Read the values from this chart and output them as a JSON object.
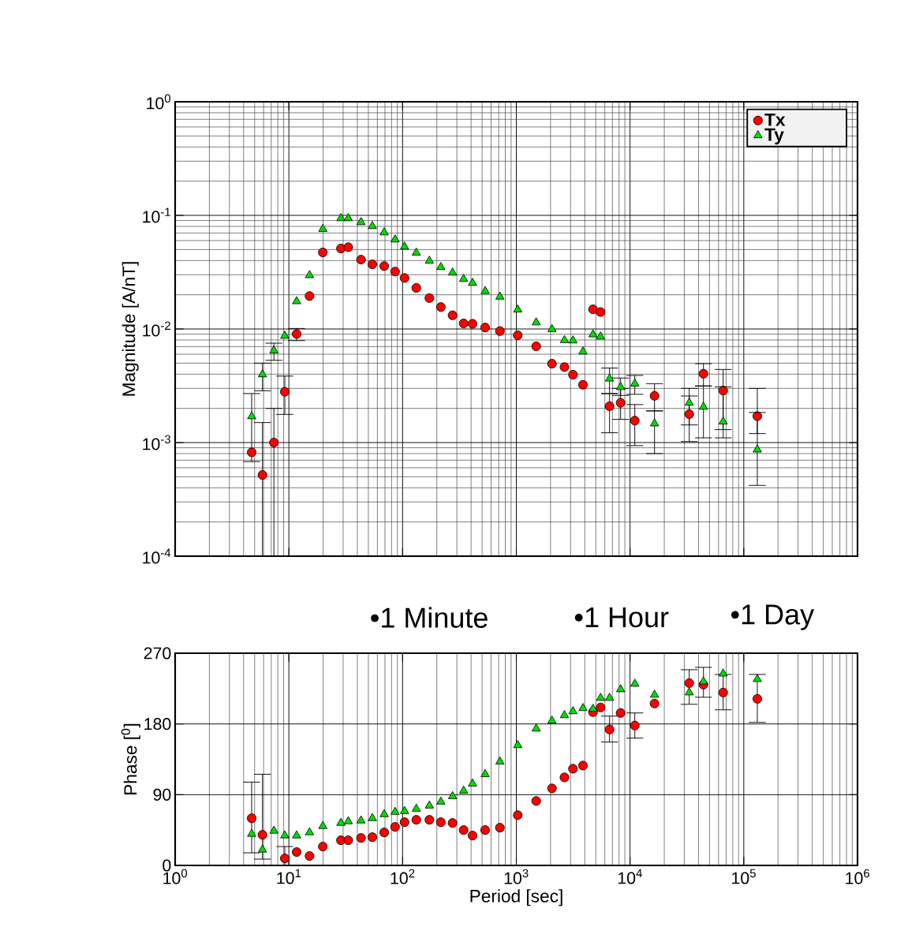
{
  "chart_data": [
    {
      "type": "scatter",
      "ylabel": "Magnitude [A/nT]",
      "log": "xy",
      "grid": true,
      "legend": "top right",
      "tick_labels": "y",
      "x": [
        4.71,
        5.86,
        7.39,
        9.21,
        11.7,
        15.2,
        19.9,
        28.7,
        33.3,
        43.1,
        54.2,
        68.9,
        85.9,
        104,
        132,
        172,
        217,
        275,
        344,
        412,
        532,
        717,
        1029,
        1495,
        2058,
        2649,
        3148,
        3855,
        4722,
        5505,
        6601,
        8258,
        11010,
        16410,
        33150,
        44190,
        65860,
        131500
      ],
      "xlim": [
        1,
        1000000
      ],
      "xticks": [
        {
          "value": 1,
          "label": null
        },
        {
          "value": 10,
          "label": null
        },
        {
          "value": 100,
          "label": null
        },
        {
          "value": 1000,
          "label": null
        },
        {
          "value": 10000,
          "label": null
        },
        {
          "value": 100000,
          "label": null
        },
        {
          "value": 1000000,
          "label": null
        }
      ],
      "ylim": [
        0.0001,
        1
      ],
      "yticks": [
        {
          "value": 0.0001,
          "label": "10$^{-4}$"
        },
        {
          "value": 0.001,
          "label": "10$^{-3}$"
        },
        {
          "value": 0.01,
          "label": "10$^{-2}$"
        },
        {
          "value": 0.1,
          "label": "10$^{-1}$"
        },
        {
          "value": 1,
          "label": "10$^{0}$"
        }
      ],
      "series": [
        {
          "name": "Tx",
          "color": "#ff0000",
          "marker": "circle",
          "values": [
            0.000821,
            0.000519,
            0.001,
            0.0028,
            0.00904,
            0.0195,
            0.0472,
            0.0511,
            0.0525,
            0.0408,
            0.0371,
            0.0358,
            0.032,
            0.0281,
            0.023,
            0.0187,
            0.0156,
            0.0132,
            0.0112,
            0.0111,
            0.0103,
            0.00958,
            0.0088,
            0.00704,
            0.00495,
            0.00462,
            0.00396,
            0.00323,
            0.0149,
            0.0141,
            0.00209,
            0.00224,
            0.00156,
            0.00258,
            0.00178,
            0.00404,
            0.00287,
            0.00171
          ],
          "errors": [
            [
              0.00068,
              0.0027
            ],
            [
              0.0001,
              0.0015
            ],
            [
              0.0001,
              0.002
            ],
            [
              0.00177,
              0.00385
            ],
            [
              0.0079,
              0.0101
            ],
            null,
            null,
            null,
            null,
            null,
            null,
            null,
            null,
            null,
            null,
            null,
            null,
            null,
            null,
            null,
            null,
            null,
            null,
            null,
            null,
            null,
            null,
            null,
            null,
            null,
            [
              0.00122,
              0.0027
            ],
            [
              0.0016,
              0.003
            ],
            [
              0.00094,
              0.00216
            ],
            [
              0.0019,
              0.0033
            ],
            [
              0.00102,
              0.00257
            ],
            [
              0.00315,
              0.00495
            ],
            [
              0.0013,
              0.0044
            ],
            [
              0.0012,
              0.003
            ]
          ]
        },
        {
          "name": "Ty",
          "color": "#00dd00",
          "marker": "triangle",
          "values": [
            0.0017,
            0.00398,
            0.00646,
            0.0087,
            0.0175,
            0.0297,
            0.0758,
            0.0943,
            0.0943,
            0.087,
            0.0803,
            0.0707,
            0.0612,
            0.053,
            0.0469,
            0.0398,
            0.035,
            0.0313,
            0.0275,
            0.0254,
            0.0215,
            0.0192,
            0.0148,
            0.0114,
            0.00995,
            0.00796,
            0.00791,
            0.00632,
            0.00894,
            0.00856,
            0.00365,
            0.00308,
            0.0033,
            0.00147,
            0.00224,
            0.00206,
            0.00153,
            0.000866
          ],
          "errors": [
            null,
            [
              0.00286,
              0.005
            ],
            [
              0.0053,
              0.0075
            ],
            null,
            null,
            null,
            null,
            null,
            null,
            null,
            null,
            null,
            null,
            null,
            null,
            null,
            null,
            null,
            null,
            null,
            null,
            null,
            null,
            null,
            null,
            null,
            null,
            null,
            null,
            null,
            [
              0.0027,
              0.00453
            ],
            [
              0.0026,
              0.0037
            ],
            [
              0.00266,
              0.0039
            ],
            [
              0.0008,
              0.0019
            ],
            [
              0.00143,
              0.003
            ],
            [
              0.0011,
              0.00315
            ],
            [
              0.0011,
              0.0031
            ],
            [
              0.00042,
              0.00184
            ]
          ]
        }
      ]
    },
    {
      "type": "scatter",
      "xlabel": "Period [sec]",
      "ylabel": "Phase [$^{0}$]",
      "log": "x",
      "grid": true,
      "x": [
        4.71,
        5.86,
        7.39,
        9.21,
        11.7,
        15.2,
        19.9,
        28.7,
        33.3,
        43.1,
        54.2,
        68.9,
        85.9,
        104,
        132,
        172,
        217,
        275,
        344,
        412,
        532,
        717,
        1029,
        1495,
        2058,
        2649,
        3148,
        3855,
        4722,
        5505,
        6601,
        8258,
        11010,
        16410,
        33150,
        44190,
        65860,
        131500
      ],
      "xlim": [
        1,
        1000000
      ],
      "xticks": [
        {
          "value": 1,
          "label": "10$^{0}$"
        },
        {
          "value": 10,
          "label": "10$^{1}$"
        },
        {
          "value": 100,
          "label": "10$^{2}$"
        },
        {
          "value": 1000,
          "label": "10$^{3}$"
        },
        {
          "value": 10000,
          "label": "10$^{4}$"
        },
        {
          "value": 100000,
          "label": "10$^{5}$"
        },
        {
          "value": 1000000,
          "label": "10$^{6}$"
        }
      ],
      "ylim": [
        0,
        270
      ],
      "yticks": [
        0,
        90,
        180,
        270
      ],
      "annotations": [
        "•1 Minute",
        "•1 Hour",
        "•1 Day"
      ],
      "series": [
        {
          "color": "#ff0000",
          "marker": "circle",
          "values": [
            60,
            39,
            null,
            9,
            17,
            12,
            24,
            32,
            32,
            35,
            36,
            42,
            49,
            55,
            58,
            58,
            55,
            54,
            45,
            38,
            45,
            48,
            64,
            82,
            98,
            112,
            123,
            127,
            195,
            201,
            173,
            194,
            178,
            206,
            232,
            230,
            220,
            212
          ],
          "errors": [
            [
              16,
              106
            ],
            [
              8,
              116
            ],
            null,
            [
              0,
              24
            ],
            null,
            null,
            null,
            null,
            null,
            null,
            null,
            null,
            null,
            null,
            null,
            null,
            null,
            null,
            null,
            null,
            null,
            null,
            null,
            null,
            null,
            null,
            null,
            null,
            null,
            null,
            [
              157,
              190
            ],
            null,
            [
              162,
              194
            ],
            null,
            [
              205,
              249
            ],
            [
              214,
              252
            ],
            [
              198,
              243
            ],
            [
              182,
              243
            ]
          ]
        },
        {
          "color": "#00dd00",
          "marker": "triangle",
          "values": [
            40,
            20,
            44,
            38,
            38,
            42,
            50,
            54,
            56,
            57,
            60,
            65,
            68,
            69,
            72,
            76,
            81,
            88,
            95,
            104,
            116,
            132,
            153,
            174,
            184,
            191,
            196,
            200,
            199,
            213,
            213,
            224,
            231,
            217,
            220,
            234,
            244,
            237
          ]
        }
      ]
    }
  ]
}
